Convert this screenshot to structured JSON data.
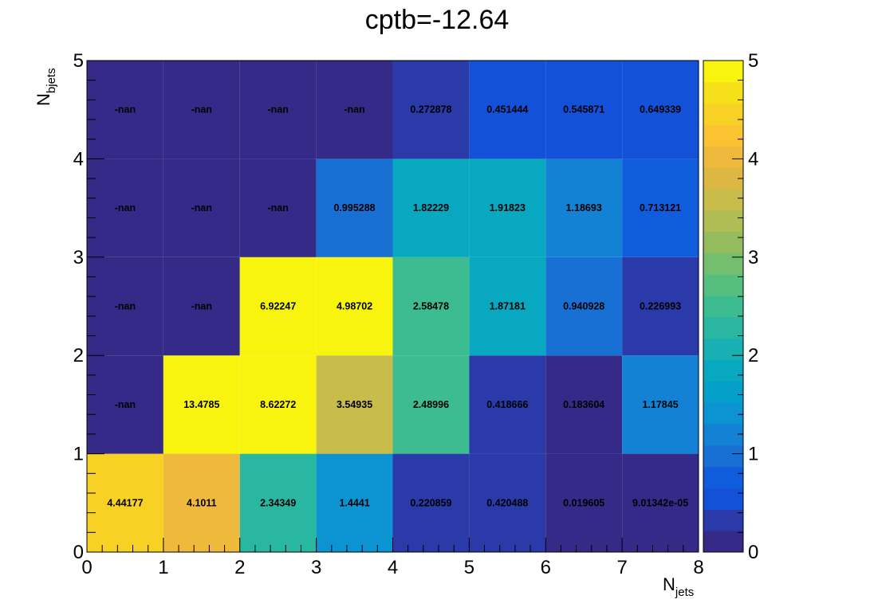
{
  "chart_data": {
    "type": "heatmap",
    "title": "cptb=-12.64",
    "xlabel": {
      "main": "N",
      "sub": "jets"
    },
    "ylabel": {
      "main": "N",
      "sub": "bjets"
    },
    "x_edges": [
      0,
      1,
      2,
      3,
      4,
      5,
      6,
      7,
      8
    ],
    "y_edges": [
      0,
      1,
      2,
      3,
      4,
      5
    ],
    "xlim": [
      0,
      8
    ],
    "ylim": [
      0,
      5
    ],
    "zlim": [
      0,
      5
    ],
    "x_ticks": [
      "0",
      "1",
      "2",
      "3",
      "4",
      "5",
      "6",
      "7",
      "8"
    ],
    "y_ticks": [
      "0",
      "1",
      "2",
      "3",
      "4",
      "5"
    ],
    "z_ticks": [
      "0",
      "1",
      "2",
      "3",
      "4",
      "5"
    ],
    "colormap": "parula",
    "rows": [
      {
        "y_bin": [
          0,
          1
        ],
        "values": [
          4.44177,
          4.1011,
          2.34349,
          1.4441,
          0.220859,
          0.420488,
          0.019605,
          9.01342e-05
        ],
        "labels": [
          "4.44177",
          "4.1011",
          "2.34349",
          "1.4441",
          "0.220859",
          "0.420488",
          "0.019605",
          "9.01342e-05"
        ]
      },
      {
        "y_bin": [
          1,
          2
        ],
        "values": [
          null,
          13.4785,
          8.62272,
          3.54935,
          2.48996,
          0.418666,
          0.183604,
          1.17845
        ],
        "labels": [
          "-nan",
          "13.4785",
          "8.62272",
          "3.54935",
          "2.48996",
          "0.418666",
          "0.183604",
          "1.17845"
        ]
      },
      {
        "y_bin": [
          2,
          3
        ],
        "values": [
          null,
          null,
          6.92247,
          4.98702,
          2.58478,
          1.87181,
          0.940928,
          0.226993
        ],
        "labels": [
          "-nan",
          "-nan",
          "6.92247",
          "4.98702",
          "2.58478",
          "1.87181",
          "0.940928",
          "0.226993"
        ]
      },
      {
        "y_bin": [
          3,
          4
        ],
        "values": [
          null,
          null,
          null,
          0.995288,
          1.82229,
          1.91823,
          1.18693,
          0.713121
        ],
        "labels": [
          "-nan",
          "-nan",
          "-nan",
          "0.995288",
          "1.82229",
          "1.91823",
          "1.18693",
          "0.713121"
        ]
      },
      {
        "y_bin": [
          4,
          5
        ],
        "values": [
          null,
          null,
          null,
          null,
          0.272878,
          0.451444,
          0.545871,
          0.649339
        ],
        "labels": [
          "-nan",
          "-nan",
          "-nan",
          "-nan",
          "0.272878",
          "0.451444",
          "0.545871",
          "0.649339"
        ]
      }
    ]
  },
  "palette": [
    "#352a87",
    "#2a3aa8",
    "#1351d8",
    "#0f5cdd",
    "#1870d5",
    "#1382d4",
    "#0c93d2",
    "#04a0c9",
    "#08a8c0",
    "#18b0b2",
    "#2ab7a2",
    "#3cbc90",
    "#56bf7f",
    "#74be6f",
    "#93bc5f",
    "#afbd54",
    "#c8bc4a",
    "#dcb843",
    "#efba3b",
    "#fbc231",
    "#f7d124",
    "#f5e01a",
    "#f9f40e"
  ],
  "nan_color": "#352a87"
}
